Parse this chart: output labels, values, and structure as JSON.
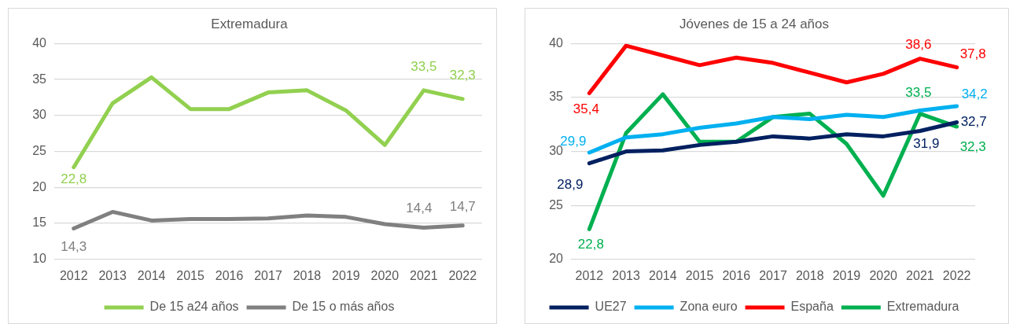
{
  "chart_data": [
    {
      "type": "line",
      "title": "Extremadura",
      "categories": [
        "2012",
        "2013",
        "2014",
        "2015",
        "2016",
        "2017",
        "2018",
        "2019",
        "2020",
        "2021",
        "2022"
      ],
      "ylim": [
        10,
        40
      ],
      "yticks": [
        10,
        15,
        20,
        25,
        30,
        35,
        40
      ],
      "grid": "y",
      "legend": "bottom",
      "series": [
        {
          "name": "De 15 a24 años",
          "color": "#92d050",
          "values": [
            22.8,
            31.7,
            35.3,
            30.9,
            30.9,
            33.2,
            33.5,
            30.7,
            25.9,
            33.5,
            32.3
          ],
          "value_labels": [
            "22,8",
            null,
            null,
            null,
            null,
            null,
            null,
            null,
            null,
            "33,5",
            "32,3"
          ]
        },
        {
          "name": "De 15 o más años",
          "color": "#808080",
          "values": [
            14.3,
            16.6,
            15.4,
            15.6,
            15.6,
            15.7,
            16.1,
            15.9,
            14.9,
            14.4,
            14.7
          ],
          "value_labels": [
            "14,3",
            null,
            null,
            null,
            null,
            null,
            null,
            null,
            null,
            "14,4",
            "14,7"
          ]
        }
      ]
    },
    {
      "type": "line",
      "title": "Jóvenes de 15 a 24 años",
      "categories": [
        "2012",
        "2013",
        "2014",
        "2015",
        "2016",
        "2017",
        "2018",
        "2019",
        "2020",
        "2021",
        "2022"
      ],
      "ylim": [
        20,
        40
      ],
      "yticks": [
        20,
        25,
        30,
        35,
        40
      ],
      "grid": "y",
      "legend": "bottom",
      "series": [
        {
          "name": "UE27",
          "color": "#002060",
          "values": [
            28.9,
            30.0,
            30.1,
            30.6,
            30.9,
            31.4,
            31.2,
            31.6,
            31.4,
            31.9,
            32.7
          ],
          "value_labels": [
            "28,9",
            null,
            null,
            null,
            null,
            null,
            null,
            null,
            null,
            "31,9",
            "32,7"
          ]
        },
        {
          "name": "Zona euro",
          "color": "#00b0f0",
          "values": [
            29.9,
            31.3,
            31.6,
            32.2,
            32.6,
            33.2,
            33.0,
            33.4,
            33.2,
            33.8,
            34.2
          ],
          "value_labels": [
            "29,9",
            null,
            null,
            null,
            null,
            null,
            null,
            null,
            null,
            null,
            "34,2"
          ]
        },
        {
          "name": "España",
          "color": "#ff0000",
          "values": [
            35.4,
            39.8,
            38.9,
            38.0,
            38.7,
            38.2,
            37.3,
            36.4,
            37.2,
            38.6,
            37.8
          ],
          "value_labels": [
            "35,4",
            null,
            null,
            null,
            null,
            null,
            null,
            null,
            null,
            "38,6",
            "37,8"
          ]
        },
        {
          "name": "Extremadura",
          "color": "#00b050",
          "values": [
            22.8,
            31.7,
            35.3,
            30.9,
            30.9,
            33.2,
            33.5,
            30.7,
            25.9,
            33.5,
            32.3
          ],
          "value_labels": [
            "22,8",
            null,
            null,
            null,
            null,
            null,
            null,
            null,
            null,
            "33,5",
            "32,3"
          ]
        }
      ]
    }
  ]
}
